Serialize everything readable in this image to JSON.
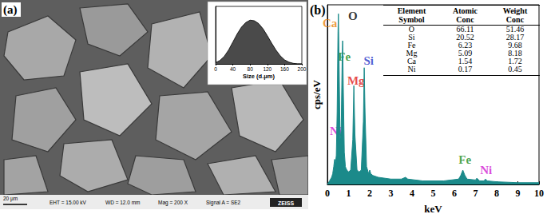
{
  "chart_data": [
    {
      "type": "area",
      "x": [
        0,
        10,
        20,
        30,
        40,
        50,
        60,
        70,
        80,
        90,
        100,
        110,
        120,
        130,
        140,
        150,
        160,
        170,
        180,
        190,
        200
      ],
      "values": [
        0.2,
        0.6,
        1.3,
        2.4,
        3.8,
        5.2,
        6.4,
        7.2,
        7.6,
        7.5,
        7.0,
        6.1,
        4.9,
        3.6,
        2.4,
        1.4,
        0.7,
        0.3,
        0.1,
        0,
        0
      ],
      "color": "#4a4a4a",
      "xlabel": "Size (d.μm)",
      "xlim": [
        0,
        200
      ],
      "xticks": [
        0,
        40,
        80,
        120,
        160,
        200
      ],
      "ylim": [
        0,
        10
      ],
      "tick_labels": "x",
      "grid": false
    },
    {
      "type": "area",
      "x": [
        0,
        0.1,
        0.2,
        0.25,
        0.3,
        0.34,
        0.38,
        0.42,
        0.46,
        0.5,
        0.52,
        0.55,
        0.6,
        0.65,
        0.7,
        0.72,
        0.75,
        0.8,
        0.85,
        0.88,
        0.92,
        1.0,
        1.1,
        1.2,
        1.25,
        1.3,
        1.4,
        1.5,
        1.6,
        1.7,
        1.74,
        1.78,
        1.85,
        1.95,
        2.0,
        2.05,
        2.15,
        2.4,
        3.0,
        3.5,
        3.69,
        3.8,
        4.5,
        5.5,
        6.2,
        6.3,
        6.4,
        6.5,
        6.6,
        7.0,
        7.06,
        7.2,
        7.4,
        7.47,
        7.55,
        8.0,
        9.0,
        10.0
      ],
      "values": [
        0,
        2,
        4,
        6,
        10,
        14,
        12,
        16,
        40,
        85,
        95,
        70,
        25,
        30,
        72,
        80,
        55,
        18,
        10,
        9,
        8,
        7,
        8,
        25,
        55,
        28,
        8,
        7,
        8,
        35,
        65,
        40,
        10,
        6,
        8,
        6,
        5,
        4,
        3,
        3,
        4,
        3,
        2,
        2,
        3,
        5,
        8,
        5,
        3,
        2.5,
        3.5,
        2,
        2,
        3,
        2,
        1.5,
        1,
        1
      ],
      "color": "#1b8a8a",
      "xlabel": "keV",
      "ylabel": "cps/eV",
      "xlim": [
        0,
        10
      ],
      "xticks": [
        0,
        1,
        2,
        3,
        4,
        5,
        6,
        7,
        8,
        9,
        10
      ],
      "ylim": [
        0,
        100
      ],
      "tick_labels": "x",
      "grid": false,
      "annotations": [
        {
          "text": "Ca",
          "x": 0.12,
          "y": 90,
          "color": "#e8820c"
        },
        {
          "text": "O",
          "x": 1.2,
          "y": 94,
          "color": "#000000"
        },
        {
          "text": "Fe",
          "x": 0.8,
          "y": 71,
          "color": "#1e8c1e"
        },
        {
          "text": "Si",
          "x": 1.95,
          "y": 69,
          "color": "#1f35c8"
        },
        {
          "text": "Mg",
          "x": 1.35,
          "y": 58,
          "color": "#e01b1b"
        },
        {
          "text": "Ni",
          "x": 0.4,
          "y": 30,
          "color": "#d21bd2"
        },
        {
          "text": "Fe",
          "x": 6.5,
          "y": 14,
          "color": "#1e8c1e"
        },
        {
          "text": "Ni",
          "x": 7.5,
          "y": 8,
          "color": "#d21bd2"
        }
      ]
    }
  ],
  "panel_a": {
    "label": "(a)",
    "scale_bar": "20 μm",
    "info": [
      "EHT = 15.00 kV",
      "WD = 12.0 mm",
      "Mag = 200 X",
      "Signal A = SE2"
    ],
    "logo": "ZEISS"
  },
  "panel_b": {
    "label": "(b)",
    "table": {
      "header": [
        "Element Symbol",
        "Atomic Conc",
        "Weight Conc"
      ],
      "rows": [
        [
          "O",
          66.11,
          51.46
        ],
        [
          "Si",
          20.52,
          28.17
        ],
        [
          "Fe",
          6.23,
          9.68
        ],
        [
          "Mg",
          5.09,
          8.18
        ],
        [
          "Ca",
          1.54,
          1.72
        ],
        [
          "Ni",
          0.17,
          0.45
        ]
      ]
    }
  }
}
